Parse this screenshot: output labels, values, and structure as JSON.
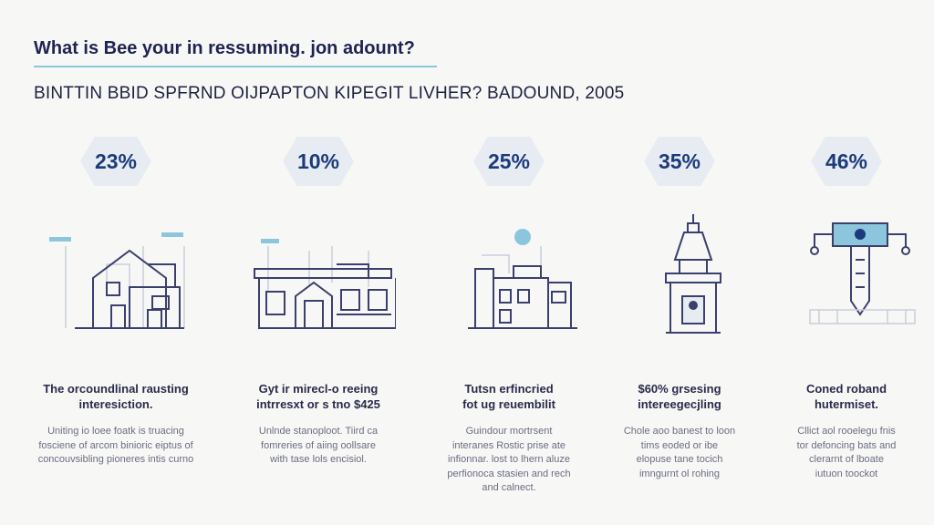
{
  "title": "What is Bee your in ressuming. jon adount?",
  "subtitle": "BINTTIN BBID SPFRND OIJPAPTON KIPEGIT LIVHER? BADOUND, 2005",
  "accent": "#8cc6dc",
  "columns": [
    {
      "percent": "23%",
      "icon": "house-icon",
      "heading": [
        "The orcoundlinal rausting",
        "interesiction."
      ],
      "body": [
        "Uniting io loee foatk is truacing",
        "fosciene of arcom binioric eiptus of",
        "concouvsibling pioneres intis curno"
      ]
    },
    {
      "percent": "10%",
      "icon": "row-house-icon",
      "heading": [
        "Gyt ir mirecl-o reeing",
        "intrresxt or s tno $425"
      ],
      "body": [
        "Unlnde stanoploot. Tiird ca",
        "fomreries of aiing oollsare",
        "with tase lols encisiol."
      ]
    },
    {
      "percent": "25%",
      "icon": "office-building-icon",
      "heading": [
        "Tutsn erfincried",
        "fot ug reuembilit"
      ],
      "body": [
        "Guindour mortrsent",
        "interanes Rostic prise ate",
        "infionnar. lost to lhern aluze",
        "perfionoca stasien and rech",
        "and calnect."
      ]
    },
    {
      "percent": "35%",
      "icon": "tower-icon",
      "heading": [
        "$60% grsesing",
        "intereegecjling"
      ],
      "body": [
        "Chole aoo banest to loon",
        "tims eoded or ibe",
        "elopuse tane tocich",
        "imngurnt ol rohing"
      ]
    },
    {
      "percent": "46%",
      "icon": "robot-key-icon",
      "heading": [
        "Coned roband",
        "hutermiset."
      ],
      "body": [
        "Cllict aol rooelegu fnis",
        "tor defoncing bats and",
        "clerarnt of lboate",
        "iutuon toockot"
      ]
    }
  ]
}
